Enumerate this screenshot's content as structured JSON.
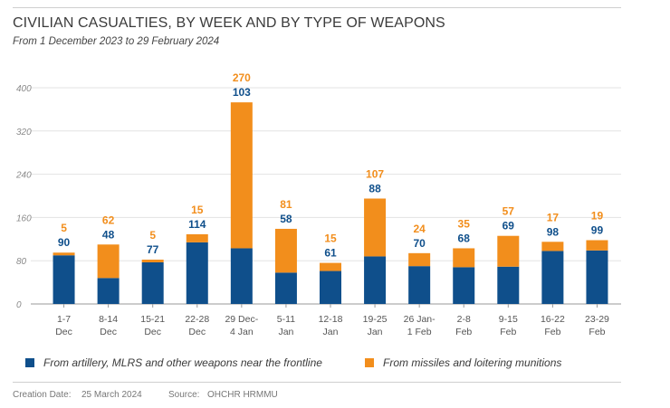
{
  "title": "CIVILIAN CASUALTIES, BY WEEK AND BY TYPE OF WEAPONS",
  "subtitle": "From 1 December 2023 to 29 February 2024",
  "colors": {
    "blue": "#0f4f8b",
    "orange": "#f28e1c",
    "grid": "#e3e3e3",
    "axis": "#9a9a9a",
    "tick_text": "#8a8a8a"
  },
  "legend": {
    "artillery": "From artillery, MLRS and other weapons near the frontline",
    "missiles": "From missiles and loitering munitions"
  },
  "footer": {
    "creation_label": "Creation Date:",
    "creation_value": "25 March 2024",
    "source_label": "Source:",
    "source_value": "OHCHR HRMMU"
  },
  "chart_data": {
    "type": "bar",
    "stacked": true,
    "categories": [
      [
        "1-7",
        "Dec"
      ],
      [
        "8-14",
        "Dec"
      ],
      [
        "15-21",
        "Dec"
      ],
      [
        "22-28",
        "Dec"
      ],
      [
        "29 Dec-",
        "4 Jan"
      ],
      [
        "5-11",
        "Jan"
      ],
      [
        "12-18",
        "Jan"
      ],
      [
        "19-25",
        "Jan"
      ],
      [
        "26 Jan-",
        "1 Feb"
      ],
      [
        "2-8",
        "Feb"
      ],
      [
        "9-15",
        "Feb"
      ],
      [
        "16-22",
        "Feb"
      ],
      [
        "23-29",
        "Feb"
      ]
    ],
    "series": [
      {
        "name": "From artillery, MLRS and other weapons near the frontline",
        "color": "#0f4f8b",
        "values": [
          90,
          48,
          77,
          114,
          103,
          58,
          61,
          88,
          70,
          68,
          69,
          98,
          99
        ]
      },
      {
        "name": "From missiles and loitering munitions",
        "color": "#f28e1c",
        "values": [
          5,
          62,
          5,
          15,
          270,
          81,
          15,
          107,
          24,
          35,
          57,
          17,
          19
        ]
      }
    ],
    "yticks": [
      0,
      80,
      160,
      240,
      320,
      400
    ],
    "ylim": [
      0,
      400
    ],
    "grid": true,
    "legend_position": "bottom"
  }
}
